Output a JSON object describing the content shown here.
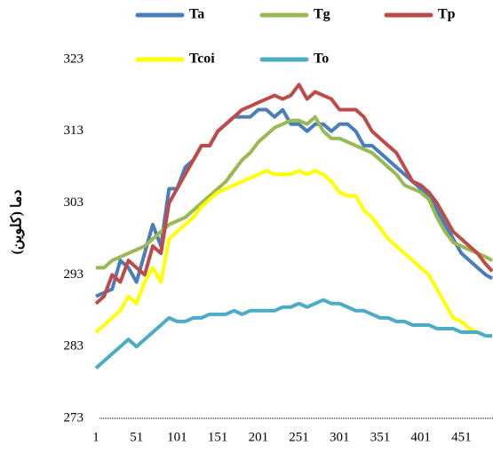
{
  "chart_data": {
    "type": "line",
    "y_label": "دما (کلوین)",
    "x": [
      1,
      11,
      21,
      31,
      41,
      51,
      61,
      71,
      81,
      91,
      101,
      111,
      121,
      131,
      141,
      151,
      161,
      171,
      181,
      191,
      201,
      211,
      221,
      231,
      241,
      251,
      261,
      271,
      281,
      291,
      301,
      311,
      321,
      331,
      341,
      351,
      361,
      371,
      381,
      391,
      401,
      411,
      421,
      431,
      441,
      451,
      461,
      471,
      481,
      489
    ],
    "series": [
      {
        "name": "Ta",
        "color": "#4a7ebb",
        "values": [
          290,
          290.5,
          291,
          295,
          294,
          292,
          296,
          300,
          297,
          305,
          305,
          308,
          309,
          311,
          311,
          313,
          314,
          315,
          315,
          315,
          316,
          316,
          315,
          316,
          314,
          314,
          313,
          314,
          314,
          313,
          314,
          314,
          313,
          311,
          311,
          310,
          309,
          308,
          307,
          306,
          305,
          304,
          302,
          300,
          298,
          296,
          295,
          294,
          293,
          292.5
        ]
      },
      {
        "name": "Tg",
        "color": "#98b954",
        "values": [
          294,
          294,
          295,
          295.5,
          296,
          296.5,
          297,
          298,
          299,
          300,
          300.5,
          301,
          302,
          303,
          304,
          305,
          306,
          307.5,
          309,
          310,
          311.5,
          312.5,
          313.5,
          314,
          314.5,
          314.5,
          314,
          315,
          313,
          312,
          312,
          311.5,
          311,
          310.5,
          310,
          309,
          308,
          307,
          305.5,
          305,
          304.5,
          303.5,
          301,
          299,
          297.5,
          297,
          296.5,
          296,
          295.5,
          295
        ]
      },
      {
        "name": "Tp",
        "color": "#be4b48",
        "values": [
          289,
          290,
          293,
          292,
          295,
          294,
          293,
          297,
          296,
          303,
          305,
          307,
          309,
          311,
          311,
          313,
          314,
          315,
          316,
          316.5,
          317,
          317.5,
          318,
          317.5,
          318,
          319.5,
          317.5,
          318.5,
          318,
          317.5,
          316,
          316,
          316,
          315,
          313,
          312,
          311,
          310,
          308,
          306,
          305.5,
          304.5,
          303,
          301,
          299,
          298,
          297,
          296,
          294.5,
          293.5
        ]
      },
      {
        "name": "Tcoi",
        "color": "#ffff00",
        "values": [
          285,
          286,
          287,
          288,
          290,
          289,
          292,
          294,
          292,
          298,
          299,
          300,
          301,
          302.5,
          303.5,
          304.5,
          305,
          305.5,
          306,
          306.5,
          307,
          307.5,
          307,
          307,
          307,
          307.5,
          307,
          307.5,
          307,
          306,
          304.5,
          304,
          304,
          302,
          301,
          299.5,
          298,
          297,
          296,
          295,
          294,
          293,
          291,
          289,
          287,
          286.5,
          285.5,
          285,
          284.5,
          284.5
        ]
      },
      {
        "name": "To",
        "color": "#4bacc6",
        "values": [
          280,
          281,
          282,
          283,
          284,
          283,
          284,
          285,
          286,
          287,
          286.5,
          286.5,
          287,
          287,
          287.5,
          287.5,
          287.5,
          288,
          287.5,
          288,
          288,
          288,
          288,
          288.5,
          288.5,
          289,
          288.5,
          289,
          289.5,
          289,
          289,
          288.5,
          288,
          288,
          287.5,
          287,
          287,
          286.5,
          286.5,
          286,
          286,
          286,
          285.5,
          285.5,
          285.5,
          285,
          285,
          285,
          284.5,
          284.5
        ]
      }
    ],
    "xlim": [
      1,
      490
    ],
    "xticks": [
      1,
      51,
      101,
      151,
      201,
      251,
      301,
      351,
      401,
      451
    ],
    "ylim": [
      273,
      323
    ],
    "yticks": [
      273,
      283,
      293,
      303,
      313,
      323
    ]
  }
}
